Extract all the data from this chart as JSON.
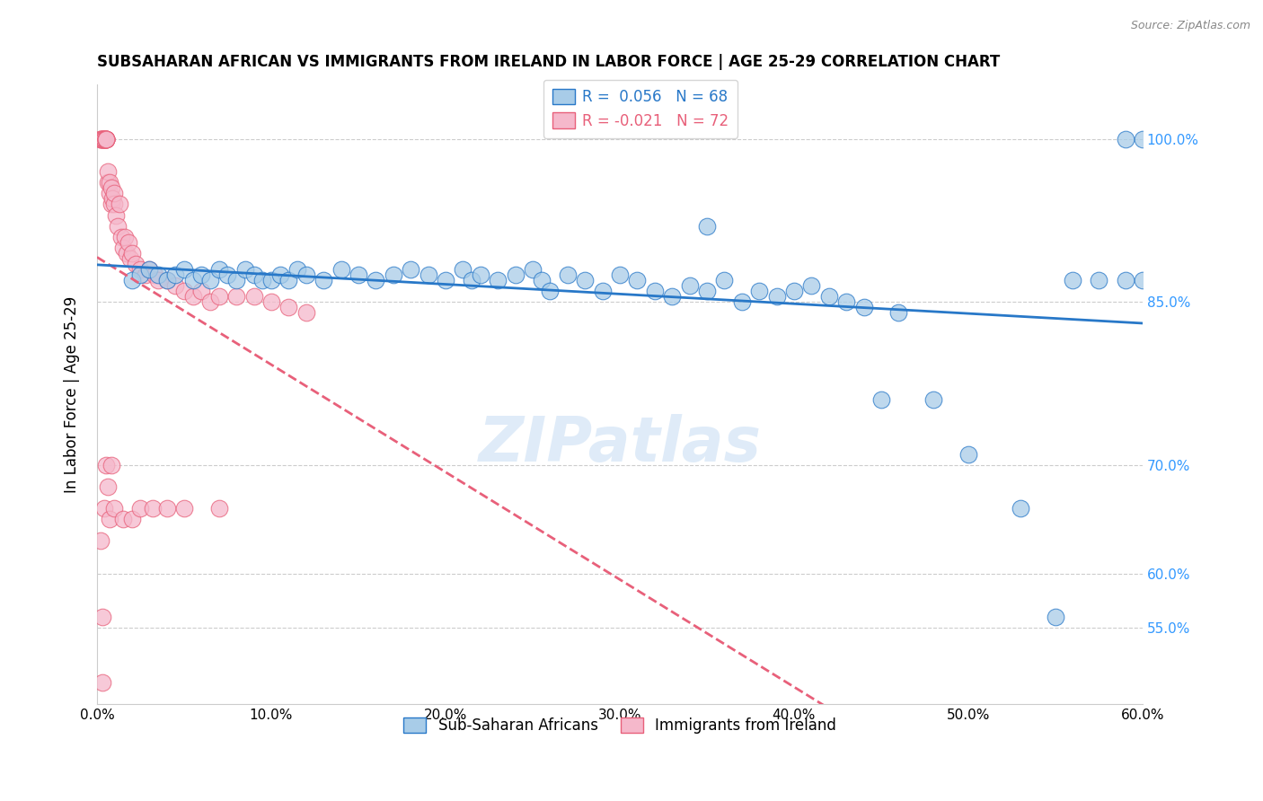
{
  "title": "SUBSAHARAN AFRICAN VS IMMIGRANTS FROM IRELAND IN LABOR FORCE | AGE 25-29 CORRELATION CHART",
  "source": "Source: ZipAtlas.com",
  "ylabel": "In Labor Force | Age 25-29",
  "xlim": [
    0.0,
    0.6
  ],
  "ylim": [
    0.48,
    1.05
  ],
  "xtick_vals": [
    0.0,
    0.1,
    0.2,
    0.3,
    0.4,
    0.5,
    0.6
  ],
  "xtick_labels": [
    "0.0%",
    "10.0%",
    "20.0%",
    "30.0%",
    "40.0%",
    "50.0%",
    "60.0%"
  ],
  "ytick_vals": [
    0.55,
    0.6,
    0.7,
    0.85,
    1.0
  ],
  "ytick_labels": [
    "55.0%",
    "60.0%",
    "70.0%",
    "85.0%",
    "100.0%"
  ],
  "blue_R": 0.056,
  "blue_N": 68,
  "pink_R": -0.021,
  "pink_N": 72,
  "blue_color": "#a8cce8",
  "pink_color": "#f5b8cb",
  "blue_line_color": "#2878c8",
  "pink_line_color": "#e8607a",
  "legend_label_blue": "Sub-Saharan Africans",
  "legend_label_pink": "Immigrants from Ireland",
  "watermark": "ZIPatlas",
  "blue_x": [
    0.02,
    0.025,
    0.03,
    0.035,
    0.04,
    0.045,
    0.05,
    0.055,
    0.06,
    0.065,
    0.07,
    0.075,
    0.08,
    0.085,
    0.09,
    0.095,
    0.1,
    0.105,
    0.11,
    0.115,
    0.12,
    0.13,
    0.14,
    0.15,
    0.16,
    0.17,
    0.18,
    0.19,
    0.2,
    0.21,
    0.215,
    0.22,
    0.23,
    0.24,
    0.25,
    0.255,
    0.26,
    0.27,
    0.28,
    0.29,
    0.3,
    0.31,
    0.32,
    0.33,
    0.34,
    0.35,
    0.36,
    0.37,
    0.38,
    0.39,
    0.4,
    0.41,
    0.42,
    0.43,
    0.44,
    0.46,
    0.48,
    0.5,
    0.53,
    0.56,
    0.575,
    0.59,
    0.6,
    0.6,
    0.59,
    0.55,
    0.45,
    0.35
  ],
  "blue_y": [
    0.87,
    0.875,
    0.88,
    0.875,
    0.87,
    0.875,
    0.88,
    0.87,
    0.875,
    0.87,
    0.88,
    0.875,
    0.87,
    0.88,
    0.875,
    0.87,
    0.87,
    0.875,
    0.87,
    0.88,
    0.875,
    0.87,
    0.88,
    0.875,
    0.87,
    0.875,
    0.88,
    0.875,
    0.87,
    0.88,
    0.87,
    0.875,
    0.87,
    0.875,
    0.88,
    0.87,
    0.86,
    0.875,
    0.87,
    0.86,
    0.875,
    0.87,
    0.86,
    0.855,
    0.865,
    0.86,
    0.87,
    0.85,
    0.86,
    0.855,
    0.86,
    0.865,
    0.855,
    0.85,
    0.845,
    0.84,
    0.76,
    0.71,
    0.66,
    0.87,
    0.87,
    1.0,
    0.87,
    1.0,
    0.87,
    0.56,
    0.76,
    0.92
  ],
  "pink_x": [
    0.002,
    0.002,
    0.002,
    0.003,
    0.003,
    0.003,
    0.003,
    0.004,
    0.004,
    0.004,
    0.004,
    0.005,
    0.005,
    0.005,
    0.005,
    0.005,
    0.005,
    0.005,
    0.005,
    0.006,
    0.006,
    0.007,
    0.007,
    0.008,
    0.008,
    0.009,
    0.01,
    0.01,
    0.011,
    0.012,
    0.013,
    0.014,
    0.015,
    0.016,
    0.017,
    0.018,
    0.019,
    0.02,
    0.022,
    0.025,
    0.028,
    0.03,
    0.033,
    0.035,
    0.04,
    0.045,
    0.05,
    0.055,
    0.06,
    0.065,
    0.07,
    0.08,
    0.09,
    0.1,
    0.11,
    0.12,
    0.002,
    0.003,
    0.003,
    0.004,
    0.005,
    0.006,
    0.007,
    0.008,
    0.01,
    0.015,
    0.02,
    0.025,
    0.032,
    0.04,
    0.05,
    0.07
  ],
  "pink_y": [
    1.0,
    1.0,
    1.0,
    1.0,
    1.0,
    1.0,
    1.0,
    1.0,
    1.0,
    1.0,
    1.0,
    1.0,
    1.0,
    1.0,
    1.0,
    1.0,
    1.0,
    1.0,
    1.0,
    0.96,
    0.97,
    0.95,
    0.96,
    0.94,
    0.955,
    0.945,
    0.94,
    0.95,
    0.93,
    0.92,
    0.94,
    0.91,
    0.9,
    0.91,
    0.895,
    0.905,
    0.89,
    0.895,
    0.885,
    0.88,
    0.875,
    0.88,
    0.875,
    0.87,
    0.87,
    0.865,
    0.86,
    0.855,
    0.86,
    0.85,
    0.855,
    0.855,
    0.855,
    0.85,
    0.845,
    0.84,
    0.63,
    0.5,
    0.56,
    0.66,
    0.7,
    0.68,
    0.65,
    0.7,
    0.66,
    0.65,
    0.65,
    0.66,
    0.66,
    0.66,
    0.66,
    0.66
  ]
}
